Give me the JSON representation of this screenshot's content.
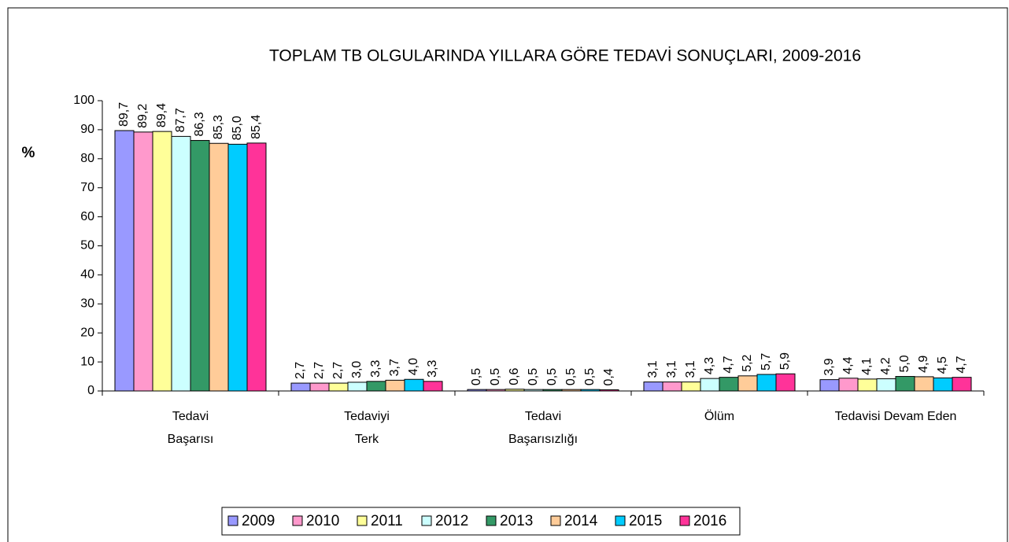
{
  "chart_data": {
    "type": "bar",
    "title": "TOPLAM TB OLGULARINDA YILLARA GÖRE TEDAVİ SONUÇLARI, 2009-2016",
    "y_label": "%",
    "categories": [
      "Tedavi\nBaşarısı",
      "Tedaviyi\nTerk",
      "Tedavi\nBaşarısızlığı",
      "Ölüm",
      "Tedavisi Devam Eden"
    ],
    "ylim": [
      0,
      100
    ],
    "yticks": [
      0,
      10,
      20,
      30,
      40,
      50,
      60,
      70,
      80,
      90,
      100
    ],
    "legend": "bottom",
    "series": [
      {
        "name": "2009",
        "color": "#9999ff",
        "values": [
          89.7,
          2.7,
          0.5,
          3.1,
          3.9
        ],
        "value_labels": [
          "89,7",
          "2,7",
          "0,5",
          "3,1",
          "3,9"
        ]
      },
      {
        "name": "2010",
        "color": "#ff99cc",
        "values": [
          89.2,
          2.7,
          0.5,
          3.1,
          4.4
        ],
        "value_labels": [
          "89,2",
          "2,7",
          "0,5",
          "3,1",
          "4,4"
        ]
      },
      {
        "name": "2011",
        "color": "#ffff99",
        "values": [
          89.4,
          2.7,
          0.6,
          3.1,
          4.1
        ],
        "value_labels": [
          "89,4",
          "2,7",
          "0,6",
          "3,1",
          "4,1"
        ]
      },
      {
        "name": "2012",
        "color": "#ccffff",
        "values": [
          87.7,
          3.0,
          0.5,
          4.3,
          4.2
        ],
        "value_labels": [
          "87,7",
          "3,0",
          "0,5",
          "4,3",
          "4,2"
        ]
      },
      {
        "name": "2013",
        "color": "#339966",
        "values": [
          86.3,
          3.3,
          0.5,
          4.7,
          5.0
        ],
        "value_labels": [
          "86,3",
          "3,3",
          "0,5",
          "4,7",
          "5,0"
        ]
      },
      {
        "name": "2014",
        "color": "#ffcc99",
        "values": [
          85.3,
          3.7,
          0.5,
          5.2,
          4.9
        ],
        "value_labels": [
          "85,3",
          "3,7",
          "0,5",
          "5,2",
          "4,9"
        ]
      },
      {
        "name": "2015",
        "color": "#00ccff",
        "values": [
          85.0,
          4.0,
          0.5,
          5.7,
          4.5
        ],
        "value_labels": [
          "85,0",
          "4,0",
          "0,5",
          "5,7",
          "4,5"
        ]
      },
      {
        "name": "2016",
        "color": "#ff3399",
        "values": [
          85.4,
          3.3,
          0.4,
          5.9,
          4.7
        ],
        "value_labels": [
          "85,4",
          "3,3",
          "0,4",
          "5,9",
          "4,7"
        ]
      }
    ]
  }
}
